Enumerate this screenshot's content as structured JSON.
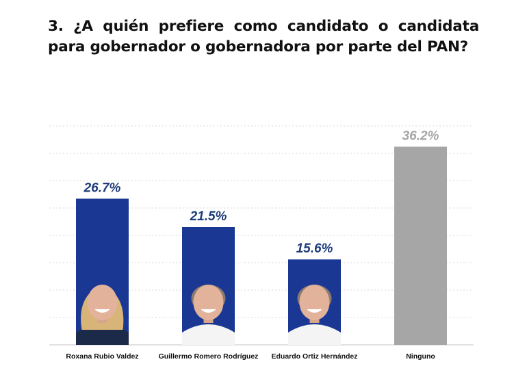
{
  "chart_data": {
    "type": "bar",
    "title": "3. ¿A quién prefiere como candidato o candidata para gobernador o gobernadora por parte del PAN?",
    "categories": [
      "Roxana Rubio Valdez",
      "Guillermo Romero Rodríguez",
      "Eduardo Ortiz Hernández",
      "Ninguno"
    ],
    "values": [
      26.7,
      21.5,
      15.6,
      36.2
    ],
    "data_labels": [
      "26.7%",
      "21.5%",
      "15.6%",
      "36.2%"
    ],
    "colors": [
      "#1a3893",
      "#1a3893",
      "#1a3893",
      "#a6a6a6"
    ],
    "label_colors": [
      "#1f3b7a",
      "#1f3b7a",
      "#1f3b7a",
      "#a6a6a6"
    ],
    "photos": [
      true,
      true,
      true,
      false
    ],
    "ylim": [
      0,
      40
    ],
    "grid": true,
    "grid_style": "dotted",
    "xlabel": "",
    "ylabel": ""
  }
}
